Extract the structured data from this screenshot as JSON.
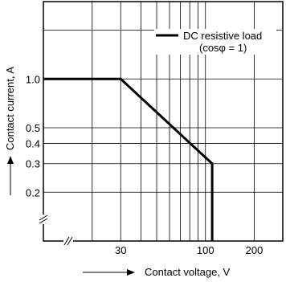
{
  "chart_data": {
    "type": "line",
    "title": "",
    "xlabel": "Contact voltage, V",
    "ylabel": "Contact current, A",
    "x_scale": "log",
    "y_scale": "log",
    "xlim": [
      10,
      300
    ],
    "ylim": [
      0.1,
      3
    ],
    "x_ticks": [
      {
        "value": 30,
        "label": "30"
      },
      {
        "value": 100,
        "label": "100"
      },
      {
        "value": 200,
        "label": "200"
      }
    ],
    "y_ticks": [
      {
        "value": 0.2,
        "label": "0.2"
      },
      {
        "value": 0.3,
        "label": "0.3"
      },
      {
        "value": 0.4,
        "label": "0.4"
      },
      {
        "value": 0.5,
        "label": "0.5"
      },
      {
        "value": 1.0,
        "label": "1.0"
      }
    ],
    "grid": true,
    "axis_break": true,
    "legend": {
      "placement": "top-right",
      "entries": [
        {
          "label": "DC resistive load",
          "sublabel": "(cosφ = 1)"
        }
      ]
    },
    "series": [
      {
        "x": [
          10,
          30,
          110,
          110
        ],
        "y": [
          1.0,
          1.0,
          0.3,
          0.1
        ]
      }
    ]
  }
}
